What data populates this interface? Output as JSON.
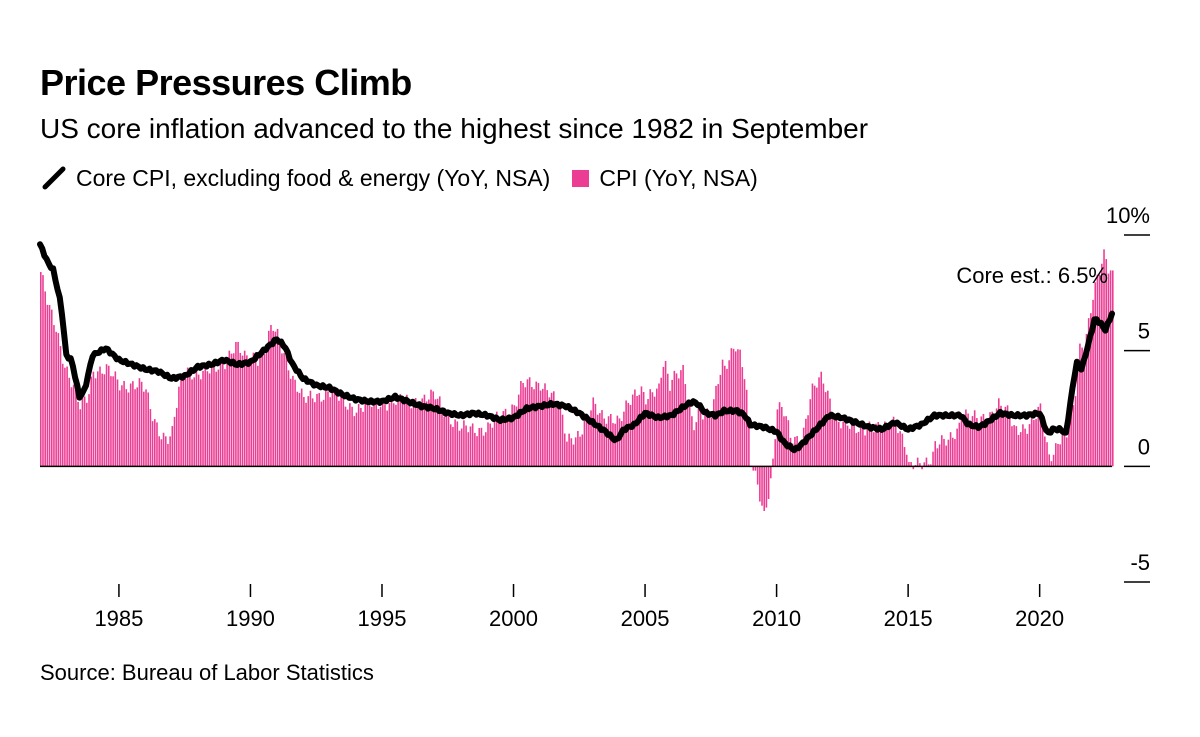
{
  "chart_data": {
    "type": "bar",
    "title": "Price Pressures Climb",
    "subtitle": "US core inflation advanced to the highest since 1982 in September",
    "legend": [
      {
        "name": "Core CPI, excluding food & energy (YoY, NSA)",
        "kind": "line",
        "color": "#000000"
      },
      {
        "name": "CPI (YoY, NSA)",
        "kind": "bar",
        "color": "#ec3d94"
      }
    ],
    "x_ticks": [
      "1985",
      "1990",
      "1995",
      "2000",
      "2005",
      "2010",
      "2015",
      "2020"
    ],
    "y_ticks": [
      "10%",
      "5",
      "0",
      "-5"
    ],
    "xlim": [
      1982.0,
      2022.75
    ],
    "ylim": [
      -5,
      10
    ],
    "annotation": "Core est.: 6.5%",
    "source": "Source: Bureau of Labor Statistics",
    "series": [
      {
        "name": "CPI (YoY, NSA)",
        "kind": "bar",
        "points": [
          [
            1982.0,
            8.4
          ],
          [
            1982.3,
            6.8
          ],
          [
            1982.6,
            5.9
          ],
          [
            1982.9,
            4.5
          ],
          [
            1983.2,
            3.6
          ],
          [
            1983.5,
            2.5
          ],
          [
            1983.8,
            3.0
          ],
          [
            1984.0,
            4.2
          ],
          [
            1984.5,
            4.2
          ],
          [
            1985.0,
            3.5
          ],
          [
            1985.5,
            3.6
          ],
          [
            1985.8,
            3.5
          ],
          [
            1986.0,
            3.2
          ],
          [
            1986.2,
            2.3
          ],
          [
            1986.5,
            1.6
          ],
          [
            1986.8,
            1.2
          ],
          [
            1987.0,
            1.4
          ],
          [
            1987.3,
            3.6
          ],
          [
            1987.6,
            4.2
          ],
          [
            1988.0,
            4.0
          ],
          [
            1988.5,
            4.1
          ],
          [
            1989.0,
            4.6
          ],
          [
            1989.4,
            5.2
          ],
          [
            1989.8,
            4.6
          ],
          [
            1990.0,
            4.8
          ],
          [
            1990.4,
            4.7
          ],
          [
            1990.8,
            6.0
          ],
          [
            1991.0,
            5.6
          ],
          [
            1991.3,
            4.8
          ],
          [
            1991.6,
            3.8
          ],
          [
            1992.0,
            2.8
          ],
          [
            1992.5,
            3.1
          ],
          [
            1993.0,
            3.2
          ],
          [
            1993.5,
            2.8
          ],
          [
            1994.0,
            2.5
          ],
          [
            1994.5,
            2.6
          ],
          [
            1995.0,
            2.8
          ],
          [
            1995.5,
            2.8
          ],
          [
            1996.0,
            2.8
          ],
          [
            1996.5,
            2.9
          ],
          [
            1997.0,
            3.0
          ],
          [
            1997.5,
            2.2
          ],
          [
            1998.0,
            1.6
          ],
          [
            1998.5,
            1.6
          ],
          [
            1999.0,
            1.7
          ],
          [
            1999.5,
            2.1
          ],
          [
            2000.0,
            2.7
          ],
          [
            2000.3,
            3.6
          ],
          [
            2000.8,
            3.4
          ],
          [
            2001.0,
            3.6
          ],
          [
            2001.3,
            3.4
          ],
          [
            2001.7,
            2.6
          ],
          [
            2001.9,
            1.6
          ],
          [
            2002.0,
            1.1
          ],
          [
            2002.5,
            1.5
          ],
          [
            2003.0,
            2.6
          ],
          [
            2003.3,
            2.2
          ],
          [
            2003.7,
            2.2
          ],
          [
            2004.0,
            1.9
          ],
          [
            2004.5,
            3.0
          ],
          [
            2004.8,
            3.5
          ],
          [
            2005.0,
            3.0
          ],
          [
            2005.5,
            3.2
          ],
          [
            2005.7,
            4.7
          ],
          [
            2005.9,
            3.5
          ],
          [
            2006.0,
            4.0
          ],
          [
            2006.4,
            4.2
          ],
          [
            2006.8,
            1.5
          ],
          [
            2007.0,
            2.4
          ],
          [
            2007.5,
            2.4
          ],
          [
            2007.9,
            4.3
          ],
          [
            2008.0,
            4.1
          ],
          [
            2008.4,
            5.4
          ],
          [
            2008.6,
            4.9
          ],
          [
            2008.8,
            3.7
          ],
          [
            2009.0,
            0.1
          ],
          [
            2009.2,
            -0.7
          ],
          [
            2009.5,
            -2.1
          ],
          [
            2009.8,
            -0.2
          ],
          [
            2010.0,
            2.6
          ],
          [
            2010.3,
            2.2
          ],
          [
            2010.5,
            1.2
          ],
          [
            2010.8,
            1.2
          ],
          [
            2011.0,
            1.6
          ],
          [
            2011.3,
            3.2
          ],
          [
            2011.7,
            3.8
          ],
          [
            2012.0,
            2.9
          ],
          [
            2012.3,
            2.0
          ],
          [
            2012.7,
            1.7
          ],
          [
            2013.0,
            1.6
          ],
          [
            2013.5,
            1.8
          ],
          [
            2014.0,
            1.5
          ],
          [
            2014.5,
            2.1
          ],
          [
            2014.9,
            0.8
          ],
          [
            2015.0,
            -0.1
          ],
          [
            2015.3,
            0.0
          ],
          [
            2015.6,
            0.2
          ],
          [
            2015.9,
            0.5
          ],
          [
            2016.0,
            1.0
          ],
          [
            2016.5,
            1.0
          ],
          [
            2016.9,
            1.7
          ],
          [
            2017.0,
            2.5
          ],
          [
            2017.3,
            2.2
          ],
          [
            2017.7,
            1.9
          ],
          [
            2018.0,
            2.1
          ],
          [
            2018.4,
            2.8
          ],
          [
            2018.8,
            2.2
          ],
          [
            2019.0,
            1.5
          ],
          [
            2019.5,
            1.8
          ],
          [
            2020.0,
            2.4
          ],
          [
            2020.3,
            0.4
          ],
          [
            2020.5,
            0.6
          ],
          [
            2020.7,
            1.3
          ],
          [
            2021.0,
            1.4
          ],
          [
            2021.3,
            2.6
          ],
          [
            2021.4,
            4.2
          ],
          [
            2021.5,
            5.0
          ],
          [
            2021.7,
            5.4
          ],
          [
            2021.9,
            6.8
          ],
          [
            2022.0,
            7.5
          ],
          [
            2022.2,
            8.3
          ],
          [
            2022.45,
            9.1
          ],
          [
            2022.55,
            8.5
          ],
          [
            2022.75,
            8.2
          ]
        ]
      },
      {
        "name": "Core CPI, excluding food & energy (YoY, NSA)",
        "kind": "line",
        "points": [
          [
            1982.0,
            9.6
          ],
          [
            1982.3,
            8.8
          ],
          [
            1982.5,
            8.5
          ],
          [
            1982.8,
            7.0
          ],
          [
            1983.0,
            4.8
          ],
          [
            1983.2,
            4.6
          ],
          [
            1983.5,
            3.0
          ],
          [
            1983.7,
            3.3
          ],
          [
            1984.0,
            4.8
          ],
          [
            1984.5,
            5.1
          ],
          [
            1985.0,
            4.6
          ],
          [
            1985.5,
            4.4
          ],
          [
            1986.0,
            4.2
          ],
          [
            1986.5,
            4.1
          ],
          [
            1987.0,
            3.8
          ],
          [
            1987.5,
            3.9
          ],
          [
            1988.0,
            4.3
          ],
          [
            1988.5,
            4.4
          ],
          [
            1989.0,
            4.6
          ],
          [
            1989.5,
            4.4
          ],
          [
            1990.0,
            4.5
          ],
          [
            1990.5,
            5.0
          ],
          [
            1991.0,
            5.5
          ],
          [
            1991.3,
            5.2
          ],
          [
            1991.6,
            4.4
          ],
          [
            1992.0,
            3.8
          ],
          [
            1992.5,
            3.5
          ],
          [
            1993.0,
            3.4
          ],
          [
            1993.5,
            3.1
          ],
          [
            1994.0,
            2.9
          ],
          [
            1994.5,
            2.8
          ],
          [
            1995.0,
            2.8
          ],
          [
            1995.5,
            3.0
          ],
          [
            1996.0,
            2.8
          ],
          [
            1996.5,
            2.6
          ],
          [
            1997.0,
            2.5
          ],
          [
            1997.5,
            2.3
          ],
          [
            1998.0,
            2.2
          ],
          [
            1998.5,
            2.3
          ],
          [
            1999.0,
            2.2
          ],
          [
            1999.5,
            2.0
          ],
          [
            2000.0,
            2.1
          ],
          [
            2000.5,
            2.5
          ],
          [
            2001.0,
            2.6
          ],
          [
            2001.5,
            2.7
          ],
          [
            2002.0,
            2.6
          ],
          [
            2002.5,
            2.3
          ],
          [
            2003.0,
            1.9
          ],
          [
            2003.5,
            1.5
          ],
          [
            2003.9,
            1.1
          ],
          [
            2004.2,
            1.6
          ],
          [
            2004.6,
            1.8
          ],
          [
            2005.0,
            2.3
          ],
          [
            2005.5,
            2.1
          ],
          [
            2006.0,
            2.2
          ],
          [
            2006.5,
            2.6
          ],
          [
            2006.8,
            2.8
          ],
          [
            2007.0,
            2.7
          ],
          [
            2007.3,
            2.3
          ],
          [
            2007.7,
            2.2
          ],
          [
            2008.0,
            2.4
          ],
          [
            2008.5,
            2.4
          ],
          [
            2008.8,
            2.2
          ],
          [
            2009.0,
            1.8
          ],
          [
            2009.5,
            1.7
          ],
          [
            2010.0,
            1.5
          ],
          [
            2010.3,
            1.0
          ],
          [
            2010.7,
            0.7
          ],
          [
            2011.0,
            1.0
          ],
          [
            2011.5,
            1.6
          ],
          [
            2012.0,
            2.2
          ],
          [
            2012.5,
            2.1
          ],
          [
            2013.0,
            1.9
          ],
          [
            2013.5,
            1.7
          ],
          [
            2014.0,
            1.6
          ],
          [
            2014.5,
            1.9
          ],
          [
            2015.0,
            1.6
          ],
          [
            2015.5,
            1.8
          ],
          [
            2016.0,
            2.2
          ],
          [
            2016.5,
            2.2
          ],
          [
            2017.0,
            2.2
          ],
          [
            2017.3,
            1.8
          ],
          [
            2017.7,
            1.7
          ],
          [
            2018.0,
            1.9
          ],
          [
            2018.5,
            2.3
          ],
          [
            2019.0,
            2.2
          ],
          [
            2019.5,
            2.2
          ],
          [
            2020.0,
            2.3
          ],
          [
            2020.3,
            1.4
          ],
          [
            2020.5,
            1.6
          ],
          [
            2020.8,
            1.6
          ],
          [
            2021.0,
            1.4
          ],
          [
            2021.2,
            3.0
          ],
          [
            2021.4,
            4.5
          ],
          [
            2021.6,
            4.2
          ],
          [
            2021.9,
            5.5
          ],
          [
            2022.1,
            6.4
          ],
          [
            2022.3,
            6.2
          ],
          [
            2022.5,
            5.9
          ],
          [
            2022.75,
            6.6
          ]
        ]
      }
    ]
  }
}
